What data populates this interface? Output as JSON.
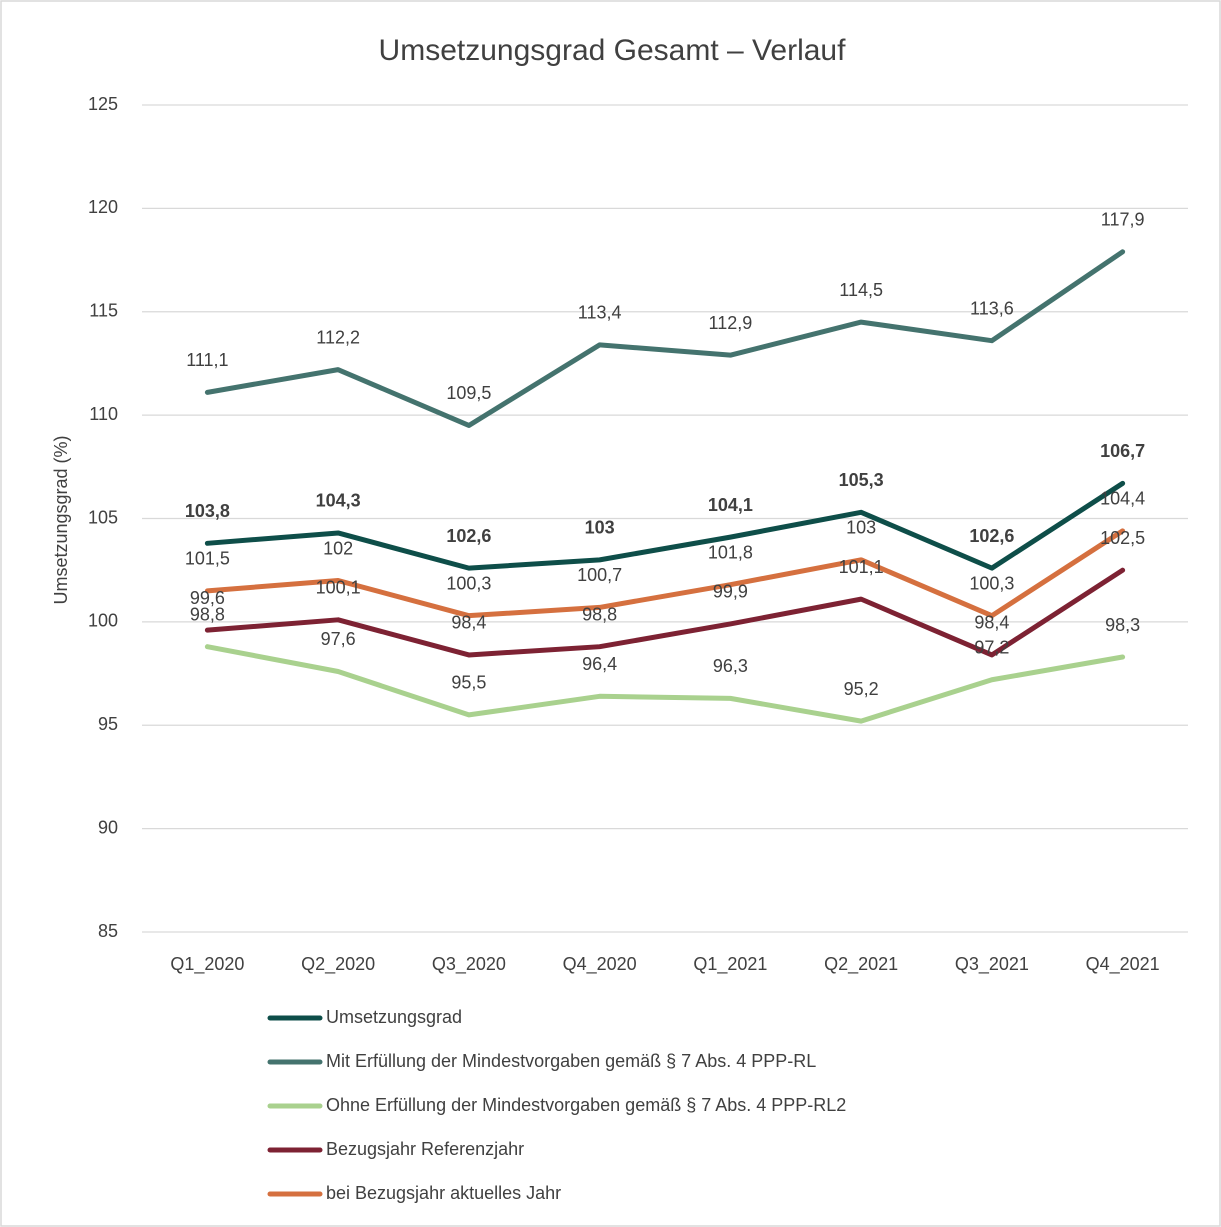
{
  "chart_data": {
    "type": "line",
    "title": "Umsetzungsgrad Gesamt – Verlauf",
    "y_label": "Umsetzungsgrad (%)",
    "categories": [
      "Q1_2020",
      "Q2_2020",
      "Q3_2020",
      "Q4_2020",
      "Q1_2021",
      "Q2_2021",
      "Q3_2021",
      "Q4_2021"
    ],
    "ylim": [
      85,
      125
    ],
    "yticks": [
      85,
      90,
      95,
      100,
      105,
      110,
      115,
      120,
      125
    ],
    "grid": true,
    "legend": "bottom",
    "series": [
      {
        "name": "Umsetzungsgrad",
        "color": "#0e4e49",
        "values": [
          103.8,
          104.3,
          102.6,
          103,
          104.1,
          105.3,
          102.6,
          106.7
        ],
        "value_labels": [
          "103,8",
          "104,3",
          "102,6",
          "103",
          "104,1",
          "105,3",
          "102,6",
          "106,7"
        ]
      },
      {
        "name": "Mit Erfüllung der Mindestvorgaben gemäß § 7 Abs. 4 PPP-RL",
        "color": "#44736e",
        "values": [
          111.1,
          112.2,
          109.5,
          113.4,
          112.9,
          114.5,
          113.6,
          117.9
        ],
        "value_labels": [
          "111,1",
          "112,2",
          "109,5",
          "113,4",
          "112,9",
          "114,5",
          "113,6",
          "117,9"
        ]
      },
      {
        "name": "Ohne Erfüllung der Mindestvorgaben gemäß § 7 Abs. 4 PPP-RL2",
        "color": "#a9d18e",
        "values": [
          98.8,
          97.6,
          95.5,
          96.4,
          96.3,
          95.2,
          97.2,
          98.3
        ],
        "value_labels": [
          "98,8",
          "97,6",
          "95,5",
          "96,4",
          "96,3",
          "95,2",
          "97,2",
          "98,3"
        ]
      },
      {
        "name": "Bezugsjahr Referenzjahr",
        "color": "#7d2233",
        "values": [
          99.6,
          100.1,
          98.4,
          98.8,
          99.9,
          101.1,
          98.4,
          102.5
        ],
        "value_labels": [
          "99,6",
          "100,1",
          "98,4",
          "98,8",
          "99,9",
          "101,1",
          "98,4",
          "102,5"
        ]
      },
      {
        "name": "bei Bezugsjahr aktuelles Jahr",
        "color": "#d5703f",
        "values": [
          101.5,
          102,
          100.3,
          100.7,
          101.8,
          103,
          100.3,
          104.4
        ],
        "value_labels": [
          "101,5",
          "102",
          "100,3",
          "100,7",
          "101,8",
          "103",
          "100,3",
          "104,4"
        ]
      }
    ]
  }
}
